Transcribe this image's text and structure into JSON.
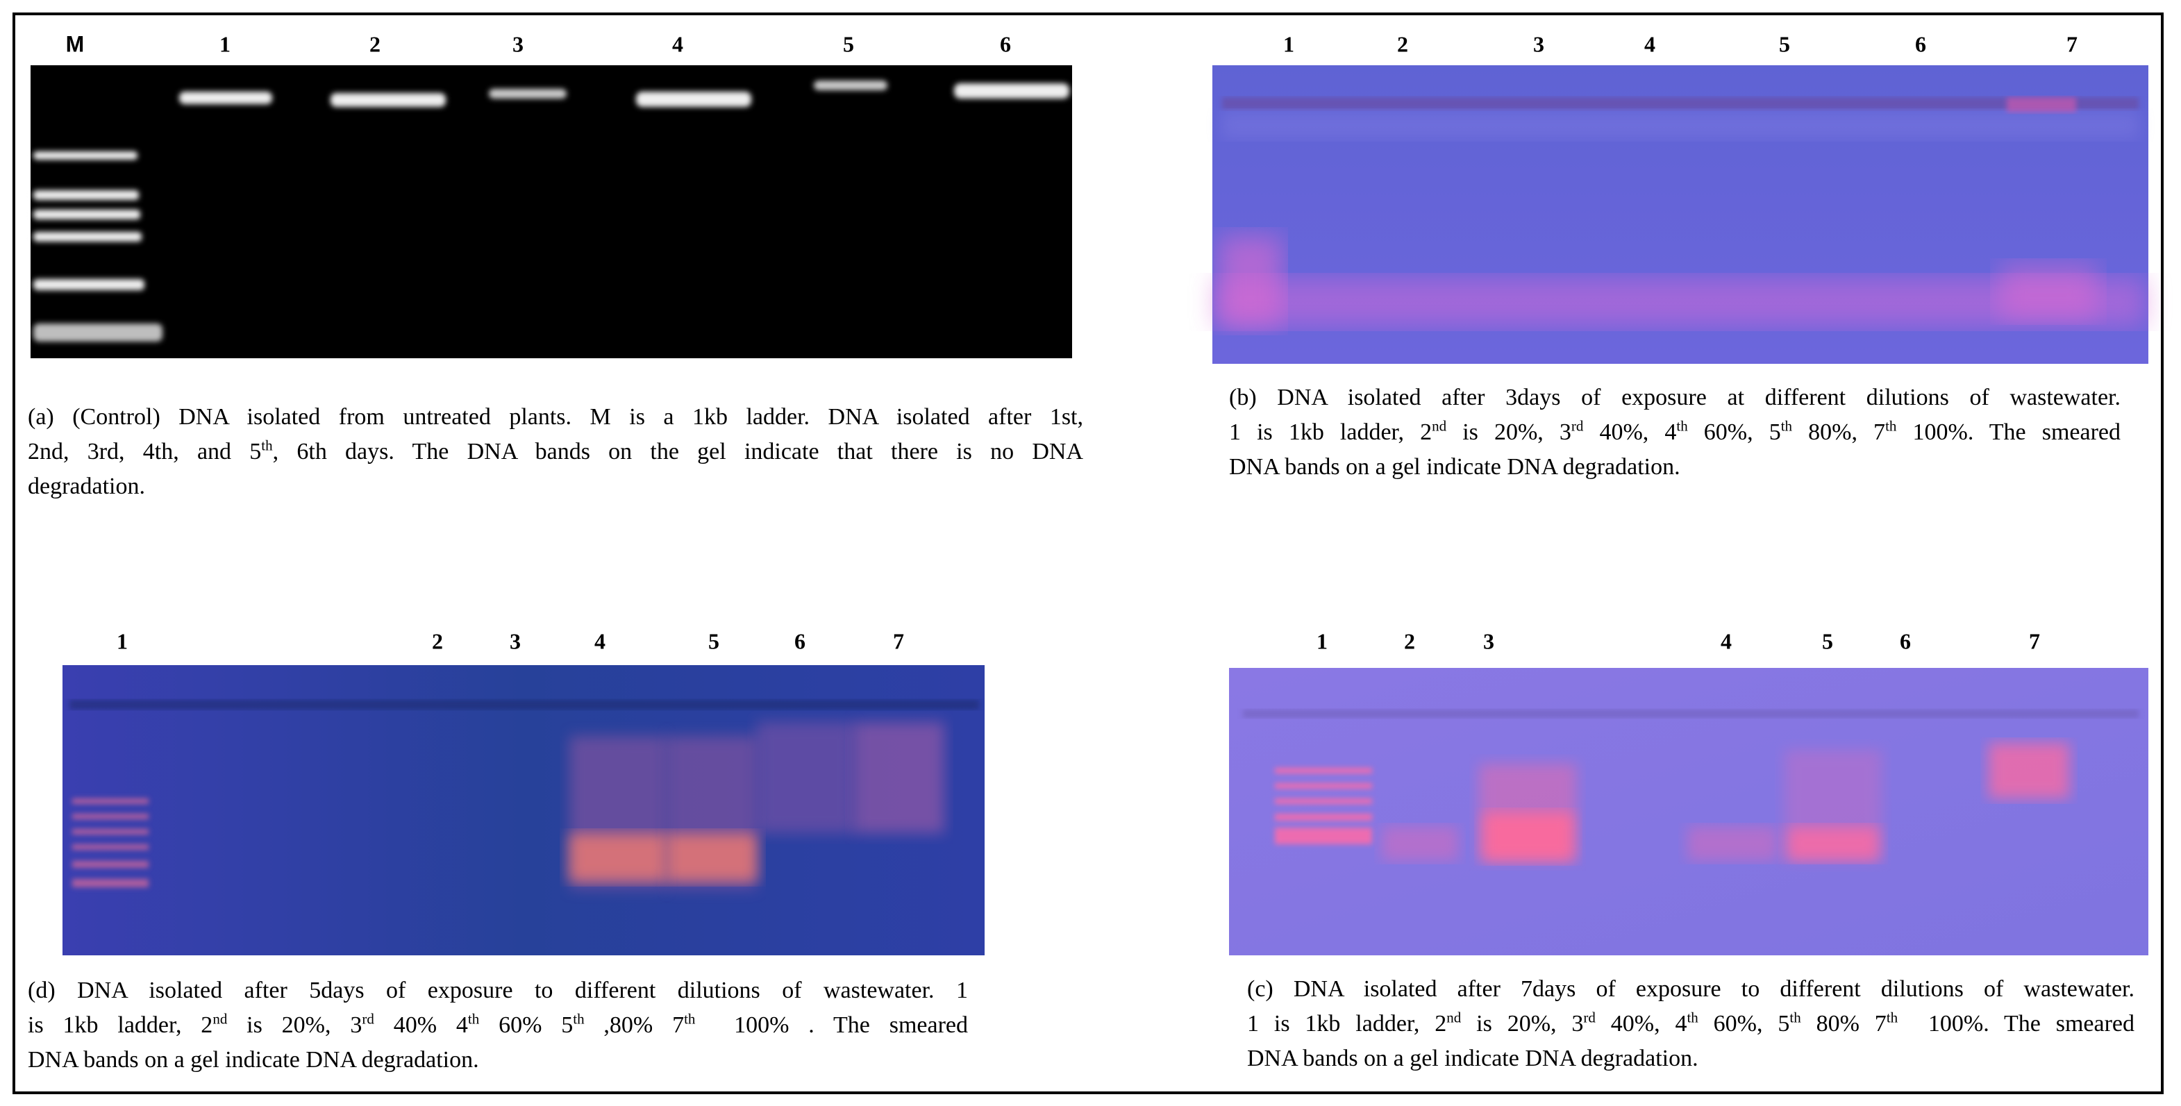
{
  "panels": [
    {
      "lane_labels": [
        "M",
        "1",
        "2",
        "3",
        "4",
        "5",
        "6"
      ],
      "caption_lines": [
        [
          "(a) (Control) DNA isolated from untreated plants. M is a 1kb ladder. DNA isolated after 1st,"
        ],
        [
          "2nd, 3rd, 4th, and 5",
          {
            "sup": "th"
          },
          ", 6th days. The DNA bands on the gel indicate that there is no DNA"
        ],
        [
          "degradation."
        ]
      ]
    },
    {
      "lane_labels": [
        "1",
        "2",
        "3",
        "4",
        "5",
        "6",
        "7"
      ],
      "caption_lines": [
        [
          "(b) DNA isolated after 3days of exposure at different dilutions of wastewater."
        ],
        [
          "1 is 1kb ladder, 2",
          {
            "sup": "nd"
          },
          " is 20%, 3",
          {
            "sup": "rd"
          },
          " 40%, 4",
          {
            "sup": "th"
          },
          " 60%, 5",
          {
            "sup": "th"
          },
          " 80%, 7",
          {
            "sup": "th"
          },
          " 100%. The smeared"
        ],
        [
          "DNA bands on a gel indicate DNA degradation."
        ]
      ]
    },
    {
      "lane_labels": [
        "1",
        "2",
        "3",
        "4",
        "5",
        "6",
        "7"
      ],
      "caption_lines": [
        [
          "(d) DNA isolated after 5days of exposure to different dilutions of wastewater. 1"
        ],
        [
          "is 1kb ladder, 2",
          {
            "sup": "nd"
          },
          " is 20%, 3",
          {
            "sup": "rd"
          },
          " 40% 4",
          {
            "sup": "th"
          },
          " 60% 5",
          {
            "sup": "th"
          },
          " ,80% 7",
          {
            "sup": "th"
          },
          "  100% . The smeared"
        ],
        [
          "DNA bands on a gel indicate DNA degradation."
        ]
      ]
    },
    {
      "lane_labels": [
        "1",
        "2",
        "3",
        "4",
        "5",
        "6",
        "7"
      ],
      "caption_lines": [
        [
          "(c) DNA isolated after 7days of exposure to different dilutions of wastewater."
        ],
        [
          "1 is 1kb ladder, 2",
          {
            "sup": "nd"
          },
          " is 20%, 3",
          {
            "sup": "rd"
          },
          " 40%, 4",
          {
            "sup": "th"
          },
          " 60%, 5",
          {
            "sup": "th"
          },
          " 80% 7",
          {
            "sup": "th"
          },
          "  100%. The smeared"
        ],
        [
          "DNA bands on a gel indicate DNA degradation."
        ]
      ]
    }
  ]
}
